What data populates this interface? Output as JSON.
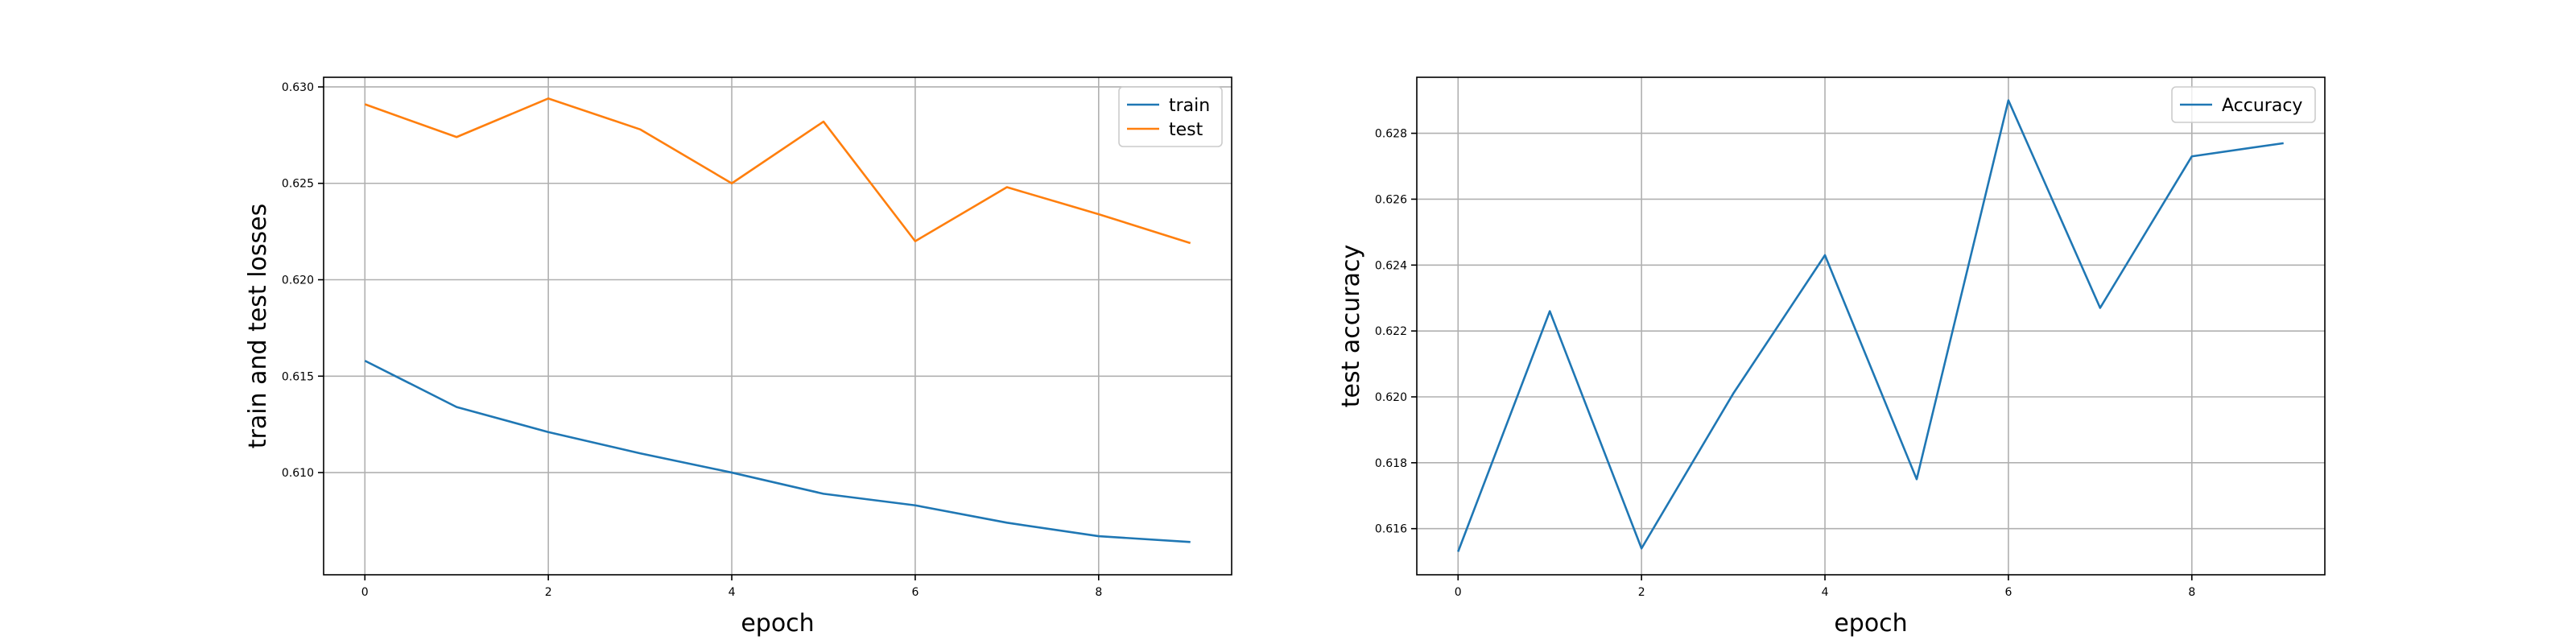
{
  "chart_data": [
    {
      "type": "line",
      "xlabel": "epoch",
      "ylabel": "train and test losses",
      "x": [
        0,
        1,
        2,
        3,
        4,
        5,
        6,
        7,
        8,
        9
      ],
      "xticks": [
        0,
        2,
        4,
        6,
        8
      ],
      "xlim": [
        -0.45,
        9.45
      ],
      "yticks": [
        0.61,
        0.615,
        0.62,
        0.625,
        0.63
      ],
      "ylim": [
        0.6047,
        0.6305
      ],
      "grid": true,
      "legend_position": "top-right",
      "series": [
        {
          "name": "train",
          "color": "#1f77b4",
          "values": [
            0.6158,
            0.6134,
            0.6121,
            0.611,
            0.61,
            0.6089,
            0.6083,
            0.6074,
            0.6067,
            0.6064
          ]
        },
        {
          "name": "test",
          "color": "#ff7f0e",
          "values": [
            0.6291,
            0.6274,
            0.6294,
            0.6278,
            0.625,
            0.6282,
            0.622,
            0.6248,
            0.6234,
            0.6219
          ]
        }
      ]
    },
    {
      "type": "line",
      "xlabel": "epoch",
      "ylabel": "test accuracy",
      "x": [
        0,
        1,
        2,
        3,
        4,
        5,
        6,
        7,
        8,
        9
      ],
      "xticks": [
        0,
        2,
        4,
        6,
        8
      ],
      "xlim": [
        -0.45,
        9.45
      ],
      "yticks": [
        0.616,
        0.618,
        0.62,
        0.622,
        0.624,
        0.626,
        0.628
      ],
      "ylim": [
        0.6146,
        0.6297
      ],
      "grid": true,
      "legend_position": "top-right",
      "series": [
        {
          "name": "Accuracy",
          "color": "#1f77b4",
          "values": [
            0.6153,
            0.6226,
            0.6154,
            0.6201,
            0.6243,
            0.6175,
            0.629,
            0.6227,
            0.6273,
            0.6277
          ]
        }
      ]
    }
  ]
}
